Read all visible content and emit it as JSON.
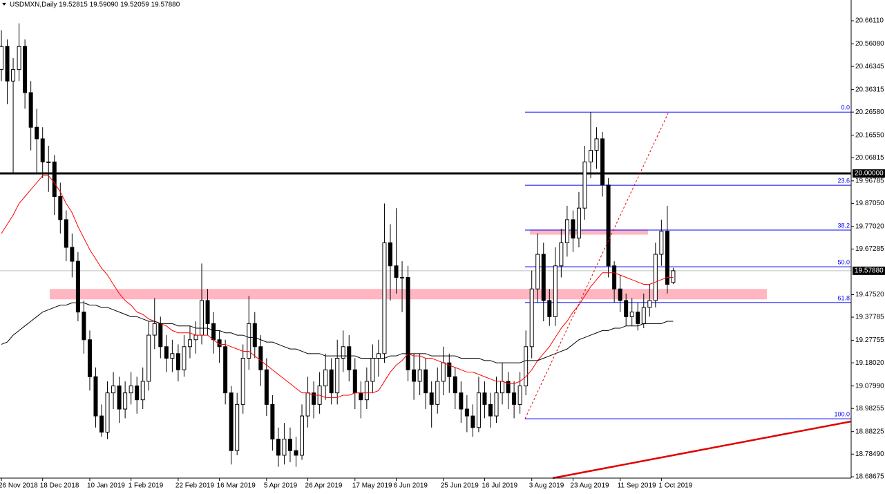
{
  "chart_data": {
    "type": "candlestick",
    "title": "USDMXN,Daily  19.52815 19.59090 19.52059 19.57880",
    "categories": [
      "26 Nov 2018",
      null,
      null,
      null,
      null,
      null,
      null,
      "18 Dec 2018",
      null,
      null,
      null,
      null,
      null,
      null,
      null,
      "10 Jan 2019",
      null,
      null,
      null,
      null,
      null,
      null,
      "1 Feb 2019",
      null,
      null,
      null,
      null,
      null,
      null,
      null,
      "22 Feb 2019",
      null,
      null,
      null,
      null,
      null,
      null,
      "16 Mar 2019",
      null,
      null,
      null,
      null,
      null,
      null,
      null,
      "5 Apr 2019",
      null,
      null,
      null,
      null,
      null,
      null,
      "26 Apr 2019",
      null,
      null,
      null,
      null,
      null,
      null,
      null,
      "17 May 2019",
      null,
      null,
      null,
      null,
      null,
      null,
      "6 Jun 2019",
      null,
      null,
      null,
      null,
      null,
      null,
      null,
      "25 Jun 2019",
      null,
      null,
      null,
      null,
      null,
      null,
      "16 Jul 2019",
      null,
      null,
      null,
      null,
      null,
      null,
      null,
      "3 Aug 2019",
      null,
      null,
      null,
      null,
      null,
      null,
      "23 Aug 2019",
      null,
      null,
      null,
      null,
      null,
      null,
      null,
      "11 Sep 2019",
      null,
      null,
      null,
      null,
      null,
      null,
      "1 Oct 2019",
      null,
      null
    ],
    "open": [
      20.45,
      20.55,
      20.4,
      20.45,
      20.55,
      20.35,
      20.2,
      20.15,
      20.05,
      20.05,
      19.9,
      19.8,
      19.68,
      19.62,
      19.4,
      19.28,
      19.12,
      18.95,
      18.88,
      19.05,
      19.08,
      18.98,
      19.05,
      19.08,
      19.02,
      19.1,
      19.3,
      19.35,
      19.25,
      19.2,
      19.22,
      19.15,
      19.25,
      19.28,
      19.3,
      19.45,
      19.35,
      19.28,
      19.25,
      19.05,
      18.8,
      19.0,
      19.2,
      19.35,
      19.25,
      19.15,
      19.0,
      18.85,
      18.78,
      18.85,
      18.8,
      18.78,
      18.95,
      19.05,
      19.0,
      19.08,
      19.15,
      19.05,
      19.2,
      19.25,
      19.15,
      19.05,
      19.02,
      19.1,
      19.2,
      19.22,
      19.7,
      19.6,
      19.55,
      19.55,
      19.15,
      19.1,
      19.15,
      19.05,
      19.0,
      19.1,
      19.18,
      19.12,
      19.05,
      18.98,
      18.95,
      18.9,
      19.05,
      19.0,
      18.95,
      19.05,
      19.1,
      19.05,
      19.0,
      19.08,
      19.25,
      19.5,
      19.65,
      19.45,
      19.38,
      19.6,
      19.7,
      19.8,
      19.72,
      19.85,
      20.05,
      20.1,
      20.15,
      19.95,
      19.6,
      19.5,
      19.45,
      19.38,
      19.4,
      19.35,
      19.42,
      19.45,
      19.65,
      19.75,
      19.52815
    ],
    "high": [
      20.62,
      20.58,
      20.5,
      20.65,
      20.58,
      20.4,
      20.28,
      20.2,
      20.12,
      20.08,
      19.96,
      19.84,
      19.74,
      19.66,
      19.45,
      19.32,
      19.16,
      19.0,
      19.1,
      19.14,
      19.12,
      19.1,
      19.14,
      19.12,
      19.16,
      19.36,
      19.46,
      19.38,
      19.3,
      19.28,
      19.26,
      19.3,
      19.34,
      19.36,
      19.61,
      19.5,
      19.4,
      19.32,
      19.28,
      19.08,
      19.05,
      19.26,
      19.47,
      19.4,
      19.3,
      19.2,
      19.04,
      18.9,
      18.92,
      18.9,
      18.86,
      19.0,
      19.12,
      19.1,
      19.14,
      19.22,
      19.2,
      19.28,
      19.32,
      19.3,
      19.2,
      19.1,
      19.16,
      19.26,
      19.28,
      19.87,
      19.78,
      19.85,
      19.62,
      19.6,
      19.22,
      19.22,
      19.2,
      19.1,
      19.16,
      19.25,
      19.22,
      19.16,
      19.1,
      19.04,
      19.0,
      19.12,
      19.1,
      19.05,
      19.12,
      19.18,
      19.14,
      19.1,
      19.14,
      19.32,
      19.58,
      19.74,
      19.7,
      19.5,
      19.68,
      19.76,
      19.86,
      19.84,
      19.92,
      20.12,
      20.265,
      20.2,
      20.18,
      19.98,
      19.62,
      19.56,
      19.48,
      19.46,
      19.44,
      19.48,
      19.52,
      19.7,
      19.8,
      19.86,
      19.5909
    ],
    "low": [
      20.4,
      20.3,
      20.0,
      20.4,
      20.28,
      20.1,
      20.0,
      19.98,
      19.92,
      19.82,
      19.74,
      19.62,
      19.55,
      19.36,
      19.22,
      19.06,
      18.9,
      18.86,
      18.85,
      18.98,
      18.92,
      18.94,
      19.0,
      18.96,
      18.98,
      19.06,
      19.24,
      19.2,
      19.14,
      19.14,
      19.1,
      19.12,
      19.2,
      19.22,
      19.26,
      19.3,
      19.22,
      19.18,
      19.0,
      18.74,
      18.78,
      18.96,
      19.15,
      19.2,
      19.08,
      18.95,
      18.8,
      18.73,
      18.74,
      18.75,
      18.73,
      18.76,
      18.9,
      18.94,
      18.96,
      19.02,
      19.0,
      19.0,
      19.14,
      19.1,
      18.98,
      18.94,
      18.98,
      19.05,
      19.12,
      19.18,
      19.45,
      19.48,
      19.4,
      19.1,
      19.02,
      19.04,
      18.98,
      18.9,
      18.96,
      19.04,
      19.05,
      18.98,
      18.92,
      18.88,
      18.86,
      18.88,
      18.94,
      18.9,
      18.92,
      19.0,
      18.98,
      18.94,
      18.96,
      19.04,
      19.2,
      19.44,
      19.36,
      19.34,
      19.34,
      19.55,
      19.64,
      19.66,
      19.68,
      19.8,
      19.98,
      20.02,
      19.9,
      19.55,
      19.44,
      19.4,
      19.34,
      19.34,
      19.32,
      19.33,
      19.38,
      19.42,
      19.6,
      19.48,
      19.52059
    ],
    "close": [
      20.55,
      20.4,
      20.45,
      20.55,
      20.35,
      20.2,
      20.15,
      20.05,
      20.05,
      19.9,
      19.8,
      19.68,
      19.62,
      19.4,
      19.28,
      19.12,
      18.95,
      18.88,
      19.05,
      19.08,
      18.98,
      19.05,
      19.08,
      19.02,
      19.1,
      19.3,
      19.35,
      19.25,
      19.2,
      19.22,
      19.15,
      19.25,
      19.28,
      19.3,
      19.45,
      19.35,
      19.28,
      19.25,
      19.05,
      18.8,
      19.0,
      19.2,
      19.35,
      19.25,
      19.15,
      19.0,
      18.85,
      18.78,
      18.85,
      18.8,
      18.78,
      18.95,
      19.05,
      19.0,
      19.08,
      19.15,
      19.05,
      19.2,
      19.25,
      19.15,
      19.05,
      19.02,
      19.1,
      19.2,
      19.22,
      19.7,
      19.6,
      19.55,
      19.55,
      19.15,
      19.1,
      19.15,
      19.05,
      19.0,
      19.1,
      19.18,
      19.12,
      19.05,
      18.98,
      18.95,
      18.9,
      19.05,
      19.0,
      18.95,
      19.05,
      19.1,
      19.05,
      19.0,
      19.08,
      19.25,
      19.5,
      19.65,
      19.45,
      19.38,
      19.6,
      19.7,
      19.8,
      19.72,
      19.85,
      20.05,
      20.1,
      20.15,
      19.95,
      19.6,
      19.5,
      19.45,
      19.38,
      19.4,
      19.35,
      19.42,
      19.45,
      19.65,
      19.75,
      19.52,
      19.5788
    ],
    "lines": [
      {
        "color": "#ff0000",
        "values": [
          19.74,
          19.78,
          19.82,
          19.87,
          19.9,
          19.93,
          19.96,
          19.99,
          19.99,
          19.96,
          19.92,
          19.87,
          19.83,
          19.77,
          19.72,
          19.67,
          19.63,
          19.59,
          19.56,
          19.52,
          19.48,
          19.45,
          19.43,
          19.4,
          19.39,
          19.37,
          19.36,
          19.35,
          19.34,
          19.32,
          19.31,
          19.31,
          19.31,
          19.3,
          19.3,
          19.3,
          19.28,
          19.26,
          19.26,
          19.25,
          19.24,
          19.23,
          19.23,
          19.21,
          19.19,
          19.17,
          19.15,
          19.13,
          19.11,
          19.09,
          19.07,
          19.05,
          19.05,
          19.04,
          19.04,
          19.03,
          19.03,
          19.03,
          19.04,
          19.04,
          19.05,
          19.05,
          19.05,
          19.05,
          19.06,
          19.1,
          19.14,
          19.17,
          19.19,
          19.22,
          19.21,
          19.21,
          19.2,
          19.2,
          19.19,
          19.18,
          19.17,
          19.16,
          19.15,
          19.14,
          19.14,
          19.13,
          19.12,
          19.11,
          19.1,
          19.1,
          19.09,
          19.09,
          19.1,
          19.12,
          19.15,
          19.19,
          19.22,
          19.25,
          19.29,
          19.33,
          19.36,
          19.4,
          19.43,
          19.47,
          19.51,
          19.54,
          19.57,
          19.57,
          19.57,
          19.56,
          19.55,
          19.54,
          19.53,
          19.52,
          19.52,
          19.53,
          19.54,
          19.55,
          19.55
        ]
      },
      {
        "color": "#000000",
        "values": [
          19.26,
          19.27,
          19.3,
          19.32,
          19.34,
          19.36,
          19.38,
          19.4,
          19.41,
          19.42,
          19.43,
          19.43,
          19.44,
          19.44,
          19.44,
          19.43,
          19.43,
          19.42,
          19.42,
          19.41,
          19.4,
          19.39,
          19.38,
          19.38,
          19.37,
          19.36,
          19.36,
          19.35,
          19.35,
          19.35,
          19.34,
          19.34,
          19.34,
          19.33,
          19.33,
          19.33,
          19.32,
          19.32,
          19.31,
          19.31,
          19.3,
          19.3,
          19.29,
          19.29,
          19.28,
          19.27,
          19.27,
          19.26,
          19.25,
          19.24,
          19.24,
          19.23,
          19.22,
          19.22,
          19.22,
          19.21,
          19.21,
          19.21,
          19.21,
          19.21,
          19.21,
          19.2,
          19.2,
          19.2,
          19.2,
          19.2,
          19.21,
          19.21,
          19.22,
          19.22,
          19.22,
          19.22,
          19.22,
          19.21,
          19.21,
          19.21,
          19.21,
          19.21,
          19.2,
          19.2,
          19.2,
          19.2,
          19.19,
          19.19,
          19.18,
          19.18,
          19.18,
          19.18,
          19.18,
          19.19,
          19.19,
          19.19,
          19.2,
          19.21,
          19.22,
          19.23,
          19.24,
          19.26,
          19.28,
          19.29,
          19.3,
          19.31,
          19.32,
          19.32,
          19.33,
          19.33,
          19.34,
          19.34,
          19.34,
          19.35,
          19.35,
          19.35,
          19.35,
          19.36,
          19.36
        ]
      }
    ],
    "ylim": [
      18.681,
      20.751
    ],
    "yticks": [
      {
        "value": 20.6611,
        "label": "20.66110"
      },
      {
        "value": 20.5608,
        "label": "20.56080"
      },
      20.46345,
      20.36315,
      {
        "value": 20.2658,
        "label": "20.26580"
      },
      {
        "value": 20.1655,
        "label": "20.16550"
      },
      20.06815,
      19.96785,
      {
        "value": 19.8705,
        "label": "19.87050"
      },
      {
        "value": 19.7702,
        "label": "19.77020"
      },
      19.67285,
      {
        "value": 19.4752,
        "label": "19.47520"
      },
      19.37785,
      19.27755,
      {
        "value": 19.1802,
        "label": "19.18020"
      },
      {
        "value": 19.0799,
        "label": "19.07990"
      },
      18.98255,
      18.88225,
      {
        "value": 18.7849,
        "label": "18.78490"
      },
      18.68675
    ],
    "hline": {
      "value": 20,
      "label": "20.00000",
      "color": "#000000"
    },
    "last_price": {
      "value": 19.5788,
      "label": "19.57880",
      "color": "#c0c0c0"
    },
    "fib": {
      "color": "#0000ff",
      "levels": [
        {
          "value": 20.2658,
          "label": "0.0"
        },
        {
          "value": 19.949,
          "label": "23.6"
        },
        {
          "value": 19.755,
          "label": "38.2"
        },
        {
          "value": 19.596,
          "label": "50.0"
        },
        {
          "value": 19.441,
          "label": "61.8"
        },
        {
          "value": 18.938,
          "label": "100.0"
        }
      ]
    },
    "zones": [
      {
        "low": 19.455,
        "high": 19.5,
        "color": "#ffb6c1"
      },
      {
        "low": 19.735,
        "high": 19.757,
        "color": "#ffb6c1"
      }
    ]
  }
}
